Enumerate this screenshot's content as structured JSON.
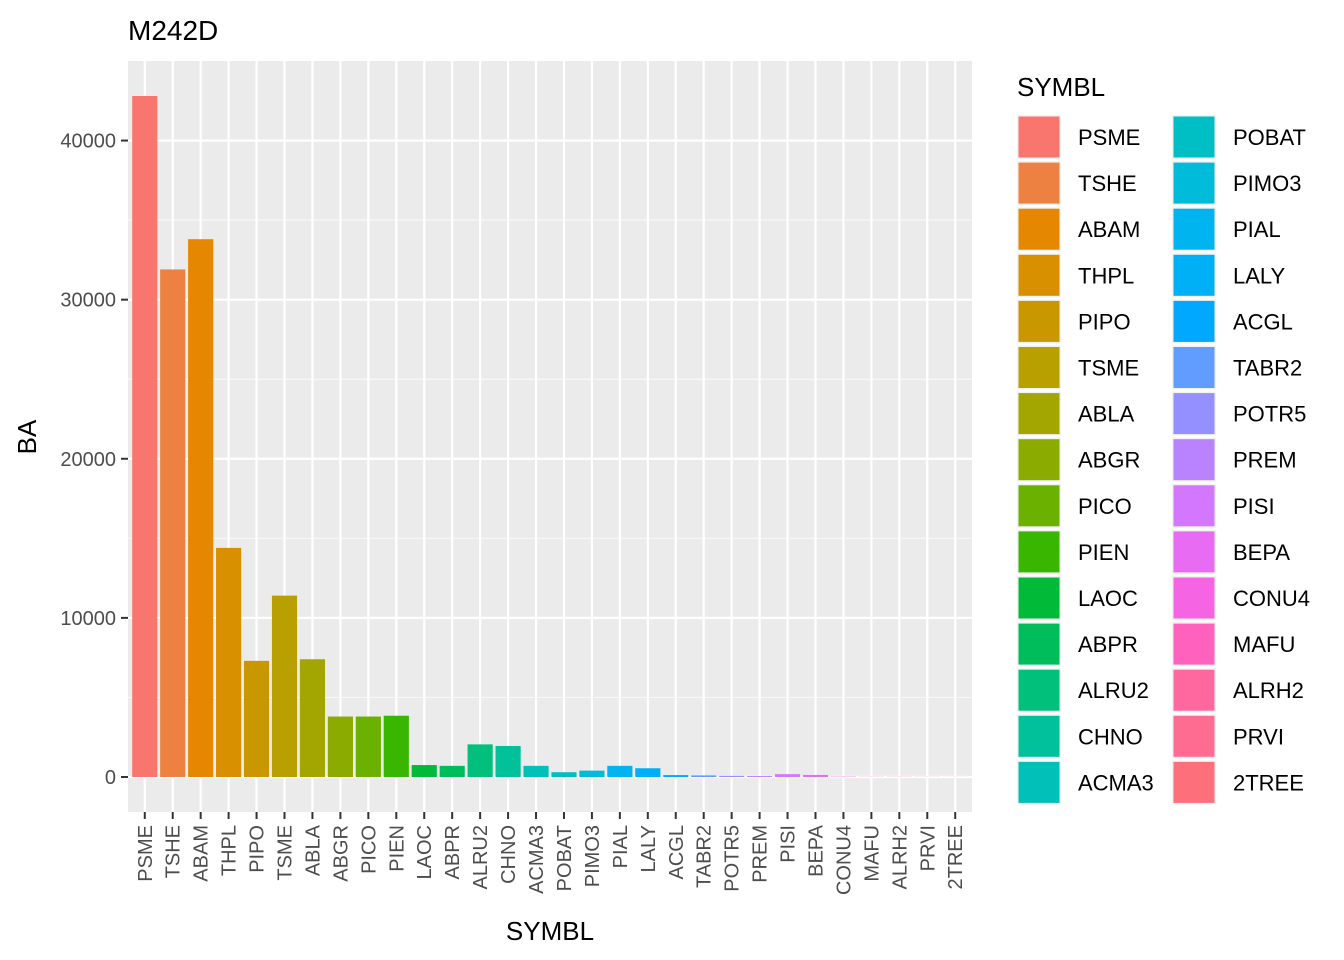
{
  "chart_data": {
    "type": "bar",
    "title": "M242D",
    "xlabel": "SYMBL",
    "ylabel": "BA",
    "ylim": [
      -2200,
      45000
    ],
    "yticks": [
      0,
      10000,
      20000,
      30000,
      40000
    ],
    "ytick_labels": [
      "0",
      "10000",
      "20000",
      "30000",
      "40000"
    ],
    "grid": true,
    "legend": {
      "title": "SYMBL",
      "placement": "right",
      "columns": 2
    },
    "categories": [
      "PSME",
      "TSHE",
      "ABAM",
      "THPL",
      "PIPO",
      "TSME",
      "ABLA",
      "ABGR",
      "PICO",
      "PIEN",
      "LAOC",
      "ABPR",
      "ALRU2",
      "CHNO",
      "ACMA3",
      "POBAT",
      "PIMO3",
      "PIAL",
      "LALY",
      "ACGL",
      "TABR2",
      "POTR5",
      "PREM",
      "PISI",
      "BEPA",
      "CONU4",
      "MAFU",
      "ALRH2",
      "PRVI",
      "2TREE"
    ],
    "values": [
      42800,
      31900,
      33800,
      14400,
      7300,
      11400,
      7400,
      3800,
      3800,
      3850,
      750,
      700,
      2050,
      1950,
      700,
      300,
      400,
      700,
      550,
      120,
      100,
      70,
      60,
      180,
      130,
      20,
      10,
      10,
      8,
      5
    ],
    "colors": [
      "#F8766D",
      "#ED8141",
      "#E58700",
      "#D89000",
      "#C99800",
      "#B8A000",
      "#A3A500",
      "#8BAB00",
      "#6BB100",
      "#39B600",
      "#00BA38",
      "#00BD5C",
      "#00C07B",
      "#00C19A",
      "#00C0B8",
      "#00BFC4",
      "#00BBDA",
      "#00B4EF",
      "#00B0F6",
      "#00A9FF",
      "#619CFF",
      "#9590FF",
      "#B983FF",
      "#D377FF",
      "#E76BF3",
      "#F564E3",
      "#FF62BC",
      "#FF689F",
      "#FF6C91",
      "#FD6F7B"
    ]
  }
}
